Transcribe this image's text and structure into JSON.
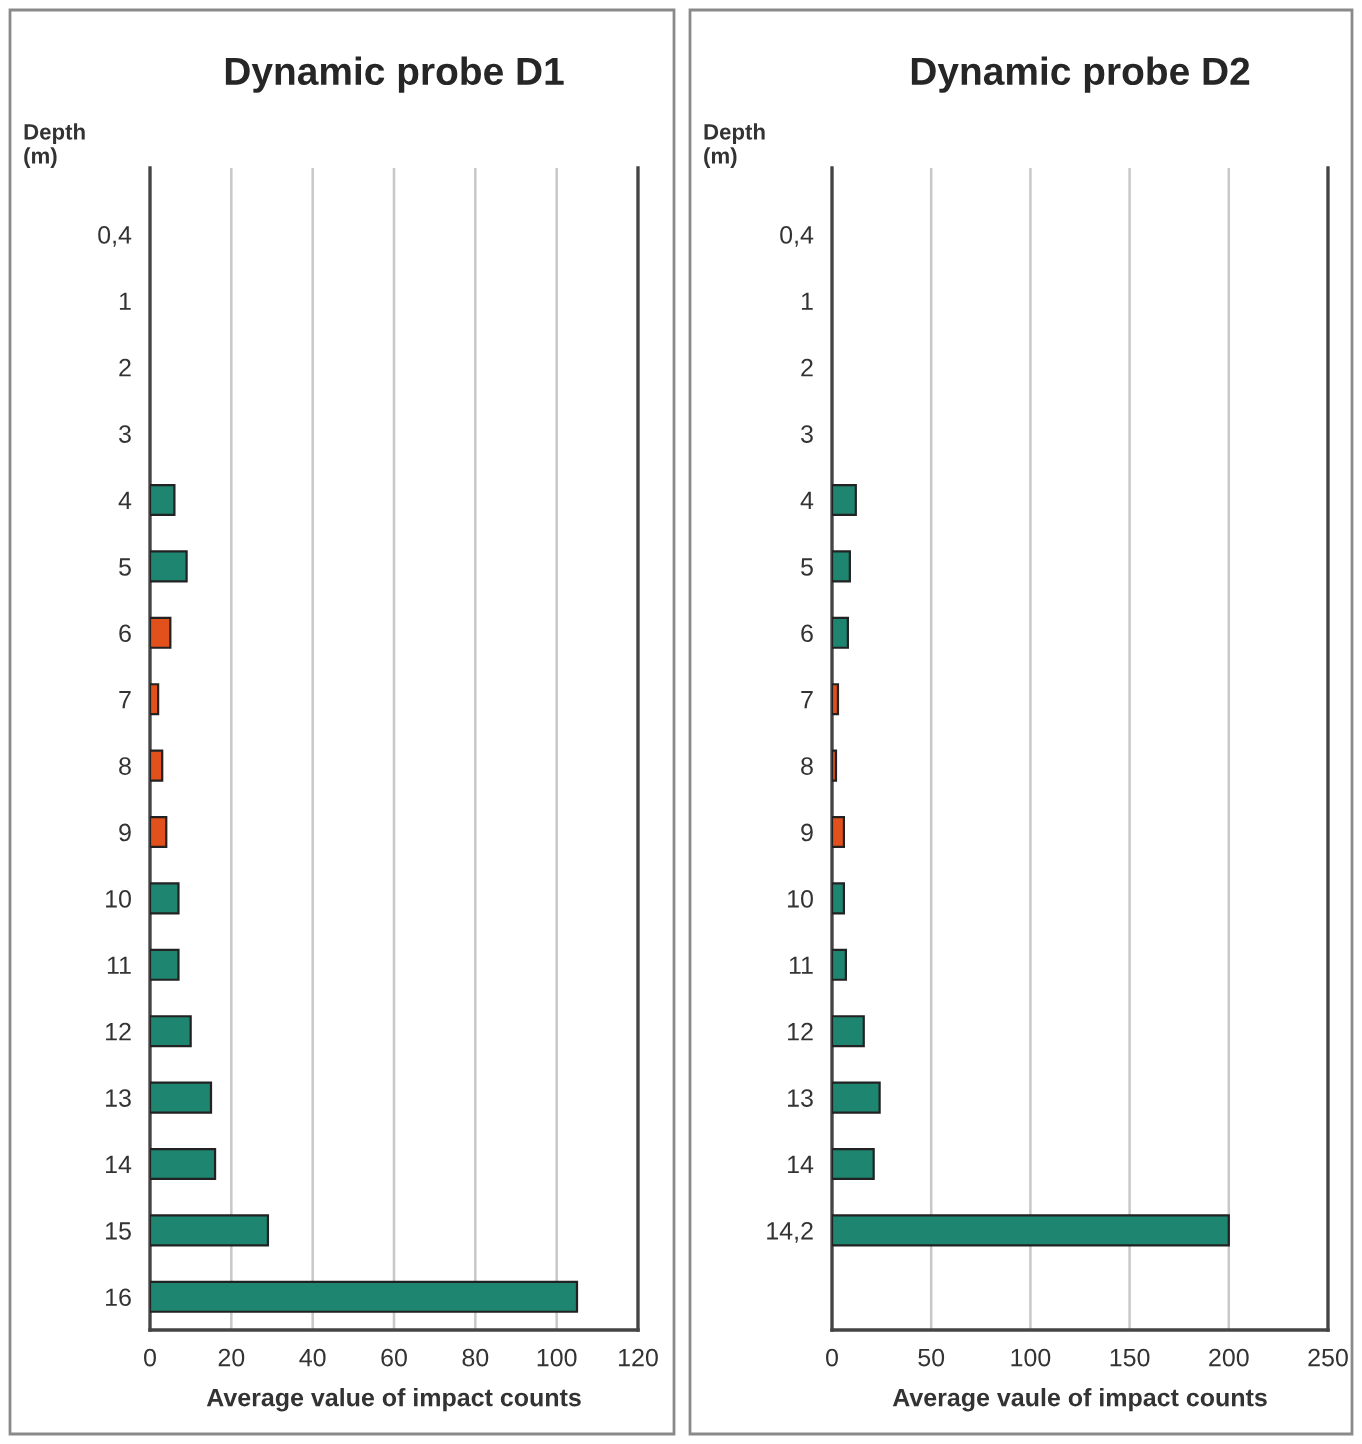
{
  "chart_data": [
    {
      "type": "bar",
      "orientation": "horizontal",
      "title": "Dynamic probe D1",
      "ylabel": "Depth\n(m)",
      "xlabel": "Average value of impact counts",
      "categories": [
        "0,4",
        "1",
        "2",
        "3",
        "4",
        "5",
        "6",
        "7",
        "8",
        "9",
        "10",
        "11",
        "12",
        "13",
        "14",
        "15",
        "16"
      ],
      "values": [
        null,
        null,
        null,
        null,
        6,
        9,
        5,
        2,
        3,
        4,
        7,
        7,
        10,
        15,
        16,
        29,
        105
      ],
      "colors": [
        null,
        null,
        null,
        null,
        "#1e8571",
        "#1e8571",
        "#e2501c",
        "#e2501c",
        "#e2501c",
        "#e2501c",
        "#1e8571",
        "#1e8571",
        "#1e8571",
        "#1e8571",
        "#1e8571",
        "#1e8571",
        "#1e8571"
      ],
      "xlim": [
        0,
        120
      ],
      "xticks": [
        0,
        20,
        40,
        60,
        80,
        100,
        120
      ],
      "grid": "x"
    },
    {
      "type": "bar",
      "orientation": "horizontal",
      "title": "Dynamic probe D2",
      "ylabel": "Depth\n(m)",
      "xlabel": "Average vaule of impact counts",
      "categories": [
        "0,4",
        "1",
        "2",
        "3",
        "4",
        "5",
        "6",
        "7",
        "8",
        "9",
        "10",
        "11",
        "12",
        "13",
        "14",
        "14,2",
        null
      ],
      "values": [
        null,
        null,
        null,
        null,
        12,
        9,
        8,
        3,
        2,
        6,
        6,
        7,
        16,
        24,
        21,
        200,
        null
      ],
      "colors": [
        null,
        null,
        null,
        null,
        "#1e8571",
        "#1e8571",
        "#1e8571",
        "#e2501c",
        "#e2501c",
        "#e2501c",
        "#1e8571",
        "#1e8571",
        "#1e8571",
        "#1e8571",
        "#1e8571",
        "#1e8571",
        null
      ],
      "xlim": [
        0,
        250
      ],
      "xticks": [
        0,
        50,
        100,
        150,
        200,
        250
      ],
      "grid": "x"
    }
  ]
}
